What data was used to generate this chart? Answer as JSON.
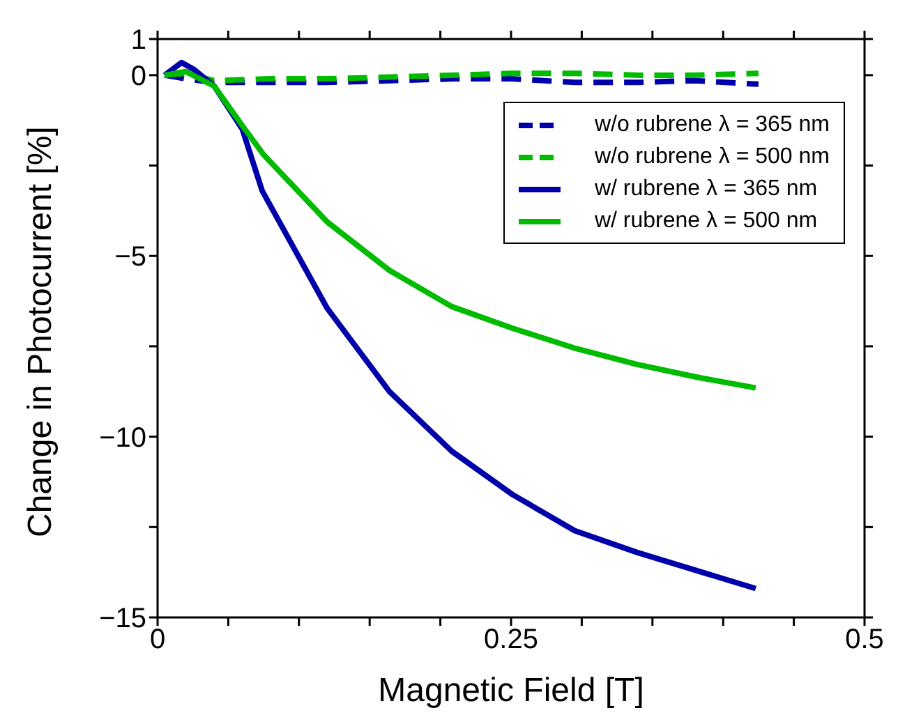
{
  "chart_data": {
    "type": "line",
    "xlabel": "Magnetic Field [T]",
    "ylabel": "Change in Photocurrent [%]",
    "xlim": [
      0,
      0.5
    ],
    "ylim": [
      -15,
      1
    ],
    "xticks": [
      0,
      {
        "value": 0.05,
        "label": null
      },
      {
        "value": 0.1,
        "label": null
      },
      {
        "value": 0.15,
        "label": null
      },
      {
        "value": 0.2,
        "label": null
      },
      0.25,
      {
        "value": 0.3,
        "label": null
      },
      {
        "value": 0.35,
        "label": null
      },
      {
        "value": 0.4,
        "label": null
      },
      {
        "value": 0.45,
        "label": null
      },
      0.5
    ],
    "yticks": [
      -15,
      {
        "value": -12.5,
        "label": null
      },
      -10,
      {
        "value": -7.5,
        "label": null
      },
      -5,
      {
        "value": -2.5,
        "label": null
      },
      0,
      1
    ],
    "legend": "top right",
    "marker": "none",
    "series": [
      {
        "name": "w/o rubrene λ = 365 nm",
        "color": "#0000aa",
        "line_style": "dashed",
        "x": [
          0.005,
          0.02,
          0.04,
          0.08,
          0.12,
          0.165,
          0.21,
          0.25,
          0.295,
          0.34,
          0.38,
          0.425
        ],
        "values": [
          0,
          -0.1,
          -0.2,
          -0.2,
          -0.2,
          -0.15,
          -0.1,
          -0.1,
          -0.2,
          -0.2,
          -0.15,
          -0.25
        ]
      },
      {
        "name": "w/o rubrene λ = 500 nm",
        "color": "#00bb00",
        "line_style": "dashed",
        "x": [
          0.005,
          0.02,
          0.04,
          0.08,
          0.12,
          0.165,
          0.21,
          0.25,
          0.295,
          0.34,
          0.38,
          0.425
        ],
        "values": [
          0,
          0.05,
          -0.15,
          -0.1,
          -0.1,
          -0.05,
          0,
          0.05,
          0.05,
          0,
          0,
          0.05
        ]
      },
      {
        "name": "w/ rubrene λ = 365 nm",
        "color": "#0000aa",
        "line_style": "solid",
        "x": [
          0.005,
          0.017,
          0.026,
          0.04,
          0.06,
          0.074,
          0.12,
          0.164,
          0.208,
          0.251,
          0.295,
          0.339,
          0.381,
          0.423
        ],
        "values": [
          0,
          0.35,
          0.15,
          -0.3,
          -1.5,
          -3.2,
          -6.45,
          -8.75,
          -10.4,
          -11.6,
          -12.6,
          -13.2,
          -13.7,
          -14.2
        ]
      },
      {
        "name": "w/ rubrene λ = 500 nm",
        "color": "#00bb00",
        "line_style": "solid",
        "x": [
          0.005,
          0.02,
          0.04,
          0.06,
          0.075,
          0.12,
          0.164,
          0.208,
          0.251,
          0.295,
          0.339,
          0.381,
          0.423
        ],
        "values": [
          0,
          0.1,
          -0.3,
          -1.4,
          -2.2,
          -4.06,
          -5.4,
          -6.4,
          -7.0,
          -7.55,
          -8.0,
          -8.35,
          -8.65
        ]
      }
    ]
  }
}
